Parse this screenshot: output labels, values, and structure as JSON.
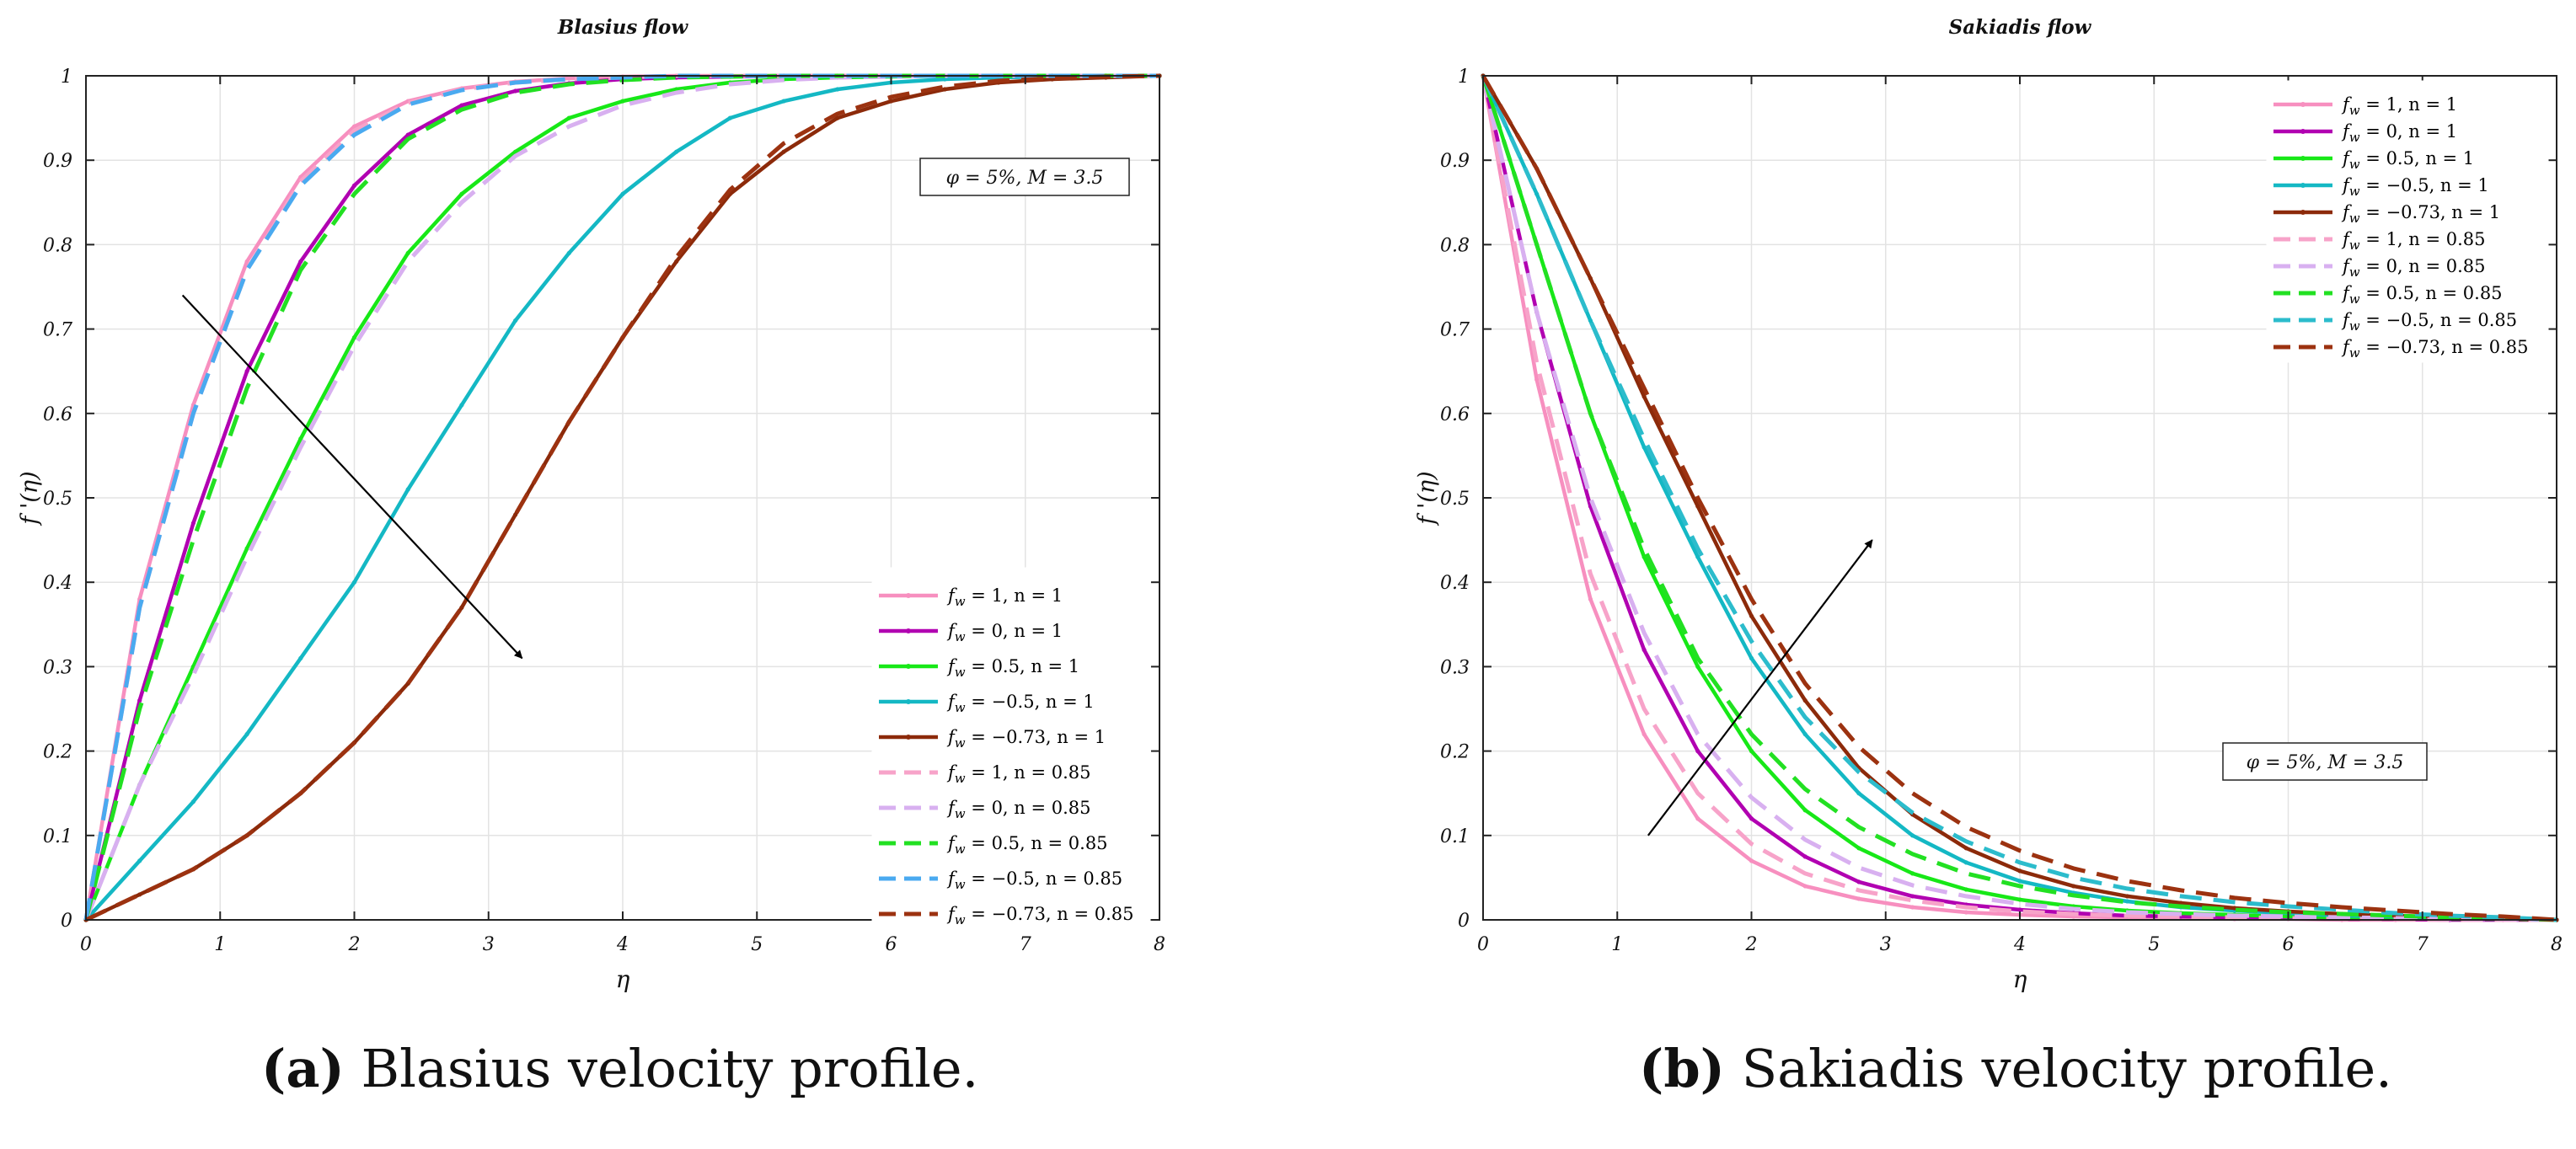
{
  "captions": [
    {
      "label": "(a)",
      "text": " Blasius velocity profile."
    },
    {
      "label": "(b)",
      "text": " Sakiadis velocity profile."
    }
  ],
  "chart_data": [
    {
      "type": "line",
      "title": "Blasius flow",
      "xlabel": "η",
      "ylabel": "f '(η)",
      "xlim": [
        0,
        8
      ],
      "ylim": [
        0,
        1
      ],
      "xticks": [
        0,
        1,
        2,
        3,
        4,
        5,
        6,
        7,
        8
      ],
      "yticks": [
        0,
        0.1,
        0.2,
        0.3,
        0.4,
        0.5,
        0.6,
        0.7,
        0.8,
        0.9,
        1
      ],
      "grid": true,
      "legend_position": "lower-right",
      "annotation": "φ = 5%, M = 3.5",
      "arrow": {
        "from": [
          0.72,
          0.74
        ],
        "to": [
          3.25,
          0.31
        ],
        "meaning": "decreasing f_w"
      },
      "x": [
        0,
        0.4,
        0.8,
        1.2,
        1.6,
        2.0,
        2.4,
        2.8,
        3.2,
        3.6,
        4.0,
        4.4,
        4.8,
        5.2,
        5.6,
        6.0,
        6.4,
        6.8,
        7.2,
        7.6,
        8.0
      ],
      "series": [
        {
          "name": "f_w = 1, n = 1",
          "color": "#f78fbf",
          "dash": "solid",
          "values": [
            0,
            0.38,
            0.61,
            0.78,
            0.88,
            0.94,
            0.97,
            0.985,
            0.993,
            0.997,
            0.999,
            1,
            1,
            1,
            1,
            1,
            1,
            1,
            1,
            1,
            1
          ]
        },
        {
          "name": "f_w = 0, n = 1",
          "color": "#b100b1",
          "dash": "solid",
          "values": [
            0,
            0.26,
            0.47,
            0.65,
            0.78,
            0.87,
            0.93,
            0.965,
            0.982,
            0.991,
            0.996,
            0.998,
            0.999,
            1,
            1,
            1,
            1,
            1,
            1,
            1,
            1
          ]
        },
        {
          "name": "f_w = 0.5, n = 1",
          "color": "#17e817",
          "dash": "solid",
          "values": [
            0,
            0.16,
            0.3,
            0.44,
            0.57,
            0.69,
            0.79,
            0.86,
            0.91,
            0.95,
            0.97,
            0.984,
            0.992,
            0.996,
            0.998,
            0.999,
            1,
            1,
            1,
            1,
            1
          ]
        },
        {
          "name": "f_w = −0.5, n = 1",
          "color": "#14b8c4",
          "dash": "solid",
          "values": [
            0,
            0.07,
            0.14,
            0.22,
            0.31,
            0.4,
            0.51,
            0.61,
            0.71,
            0.79,
            0.86,
            0.91,
            0.95,
            0.97,
            0.984,
            0.992,
            0.996,
            0.998,
            0.999,
            1,
            1
          ]
        },
        {
          "name": "f_w = −0.73, n = 1",
          "color": "#8c2a0a",
          "dash": "solid",
          "values": [
            0,
            0.03,
            0.06,
            0.1,
            0.15,
            0.21,
            0.28,
            0.37,
            0.48,
            0.59,
            0.69,
            0.78,
            0.86,
            0.91,
            0.95,
            0.97,
            0.984,
            0.992,
            0.996,
            0.998,
            1
          ]
        },
        {
          "name": "f_w = 1, n = 0.85",
          "color": "#f7a3c9",
          "dash": "dashed",
          "values": [
            0,
            0.37,
            0.6,
            0.77,
            0.875,
            0.935,
            0.968,
            0.984,
            0.992,
            0.996,
            0.998,
            1,
            1,
            1,
            1,
            1,
            1,
            1,
            1,
            1,
            1
          ]
        },
        {
          "name": "f_w = 0, n = 0.85",
          "color": "#d8b0f0",
          "dash": "dashed",
          "values": [
            0,
            0.16,
            0.29,
            0.43,
            0.56,
            0.68,
            0.78,
            0.85,
            0.905,
            0.94,
            0.965,
            0.98,
            0.99,
            0.995,
            0.998,
            0.999,
            1,
            1,
            1,
            1,
            1
          ]
        },
        {
          "name": "f_w = 0.5, n = 0.85",
          "color": "#22e022",
          "dash": "dashed",
          "values": [
            0,
            0.25,
            0.45,
            0.63,
            0.77,
            0.86,
            0.925,
            0.96,
            0.98,
            0.99,
            0.995,
            0.998,
            0.999,
            1,
            1,
            1,
            1,
            1,
            1,
            1,
            1
          ]
        },
        {
          "name": "f_w = −0.5, n = 0.85",
          "color": "#4aaaf0",
          "dash": "dashed",
          "values": [
            0,
            0.37,
            0.6,
            0.77,
            0.87,
            0.93,
            0.966,
            0.983,
            0.992,
            0.996,
            0.998,
            1,
            1,
            1,
            1,
            1,
            1,
            1,
            1,
            1,
            1
          ]
        },
        {
          "name": "f_w = −0.73, n = 0.85",
          "color": "#9c3210",
          "dash": "dashed",
          "values": [
            0,
            0.03,
            0.06,
            0.1,
            0.15,
            0.21,
            0.28,
            0.37,
            0.48,
            0.59,
            0.69,
            0.785,
            0.865,
            0.92,
            0.955,
            0.975,
            0.987,
            0.994,
            0.997,
            0.999,
            1
          ]
        }
      ]
    },
    {
      "type": "line",
      "title": "Sakiadis flow",
      "xlabel": "η",
      "ylabel": "f '(η)",
      "xlim": [
        0,
        8
      ],
      "ylim": [
        0,
        1
      ],
      "xticks": [
        0,
        1,
        2,
        3,
        4,
        5,
        6,
        7,
        8
      ],
      "yticks": [
        0,
        0.1,
        0.2,
        0.3,
        0.4,
        0.5,
        0.6,
        0.7,
        0.8,
        0.9,
        1
      ],
      "grid": true,
      "legend_position": "top-right",
      "annotation": "φ = 5%, M = 3.5",
      "arrow": {
        "from": [
          1.23,
          0.1
        ],
        "to": [
          2.9,
          0.45
        ],
        "meaning": "decreasing f_w"
      },
      "x": [
        0,
        0.4,
        0.8,
        1.2,
        1.6,
        2.0,
        2.4,
        2.8,
        3.2,
        3.6,
        4.0,
        4.4,
        4.8,
        5.2,
        5.6,
        6.0,
        6.4,
        6.8,
        7.2,
        7.6,
        8.0
      ],
      "series": [
        {
          "name": "f_w = 1, n = 1",
          "color": "#f78fbf",
          "dash": "solid",
          "values": [
            1,
            0.64,
            0.38,
            0.22,
            0.12,
            0.07,
            0.04,
            0.025,
            0.015,
            0.009,
            0.006,
            0.004,
            0.003,
            0.002,
            0.001,
            0.001,
            0,
            0,
            0,
            0,
            0
          ]
        },
        {
          "name": "f_w = 0, n = 1",
          "color": "#b100b1",
          "dash": "solid",
          "values": [
            1,
            0.72,
            0.49,
            0.32,
            0.2,
            0.12,
            0.075,
            0.045,
            0.028,
            0.018,
            0.012,
            0.008,
            0.005,
            0.004,
            0.003,
            0.002,
            0.001,
            0.001,
            0,
            0,
            0
          ]
        },
        {
          "name": "f_w = 0.5, n = 1",
          "color": "#17e817",
          "dash": "solid",
          "values": [
            1,
            0.8,
            0.6,
            0.43,
            0.3,
            0.2,
            0.13,
            0.085,
            0.055,
            0.036,
            0.024,
            0.016,
            0.011,
            0.008,
            0.006,
            0.004,
            0.003,
            0.002,
            0.001,
            0.001,
            0
          ]
        },
        {
          "name": "f_w = −0.5, n = 1",
          "color": "#14b8c4",
          "dash": "solid",
          "values": [
            1,
            0.86,
            0.71,
            0.56,
            0.43,
            0.31,
            0.22,
            0.15,
            0.1,
            0.068,
            0.046,
            0.032,
            0.022,
            0.015,
            0.011,
            0.008,
            0.005,
            0.004,
            0.002,
            0.001,
            0
          ]
        },
        {
          "name": "f_w = −0.73, n = 1",
          "color": "#8c2a0a",
          "dash": "solid",
          "values": [
            1,
            0.89,
            0.76,
            0.62,
            0.49,
            0.36,
            0.26,
            0.18,
            0.125,
            0.085,
            0.058,
            0.04,
            0.028,
            0.02,
            0.014,
            0.01,
            0.007,
            0.005,
            0.003,
            0.001,
            0
          ]
        },
        {
          "name": "f_w = 1, n = 0.85",
          "color": "#f7a3c9",
          "dash": "dashed",
          "values": [
            1,
            0.66,
            0.41,
            0.25,
            0.15,
            0.09,
            0.055,
            0.035,
            0.023,
            0.015,
            0.01,
            0.007,
            0.005,
            0.004,
            0.003,
            0.002,
            0.001,
            0.001,
            0,
            0,
            0
          ]
        },
        {
          "name": "f_w = 0, n = 0.85",
          "color": "#d8b0f0",
          "dash": "dashed",
          "values": [
            1,
            0.72,
            0.5,
            0.34,
            0.22,
            0.145,
            0.095,
            0.062,
            0.041,
            0.028,
            0.019,
            0.013,
            0.009,
            0.007,
            0.005,
            0.004,
            0.003,
            0.002,
            0.001,
            0.001,
            0
          ]
        },
        {
          "name": "f_w = 0.5, n = 0.85",
          "color": "#22e022",
          "dash": "dashed",
          "values": [
            1,
            0.8,
            0.6,
            0.44,
            0.31,
            0.22,
            0.155,
            0.11,
            0.078,
            0.055,
            0.04,
            0.029,
            0.021,
            0.016,
            0.012,
            0.009,
            0.007,
            0.005,
            0.003,
            0.002,
            0
          ]
        },
        {
          "name": "f_w = −0.5, n = 0.85",
          "color": "#2cbccc",
          "dash": "dashed",
          "values": [
            1,
            0.86,
            0.71,
            0.57,
            0.44,
            0.33,
            0.24,
            0.175,
            0.127,
            0.093,
            0.068,
            0.05,
            0.037,
            0.028,
            0.021,
            0.016,
            0.012,
            0.008,
            0.005,
            0.003,
            0
          ]
        },
        {
          "name": "f_w = −0.73, n = 0.85",
          "color": "#9c3210",
          "dash": "dashed",
          "values": [
            1,
            0.89,
            0.76,
            0.63,
            0.5,
            0.38,
            0.28,
            0.205,
            0.15,
            0.11,
            0.082,
            0.061,
            0.046,
            0.035,
            0.026,
            0.02,
            0.015,
            0.011,
            0.007,
            0.004,
            0
          ]
        }
      ]
    }
  ]
}
